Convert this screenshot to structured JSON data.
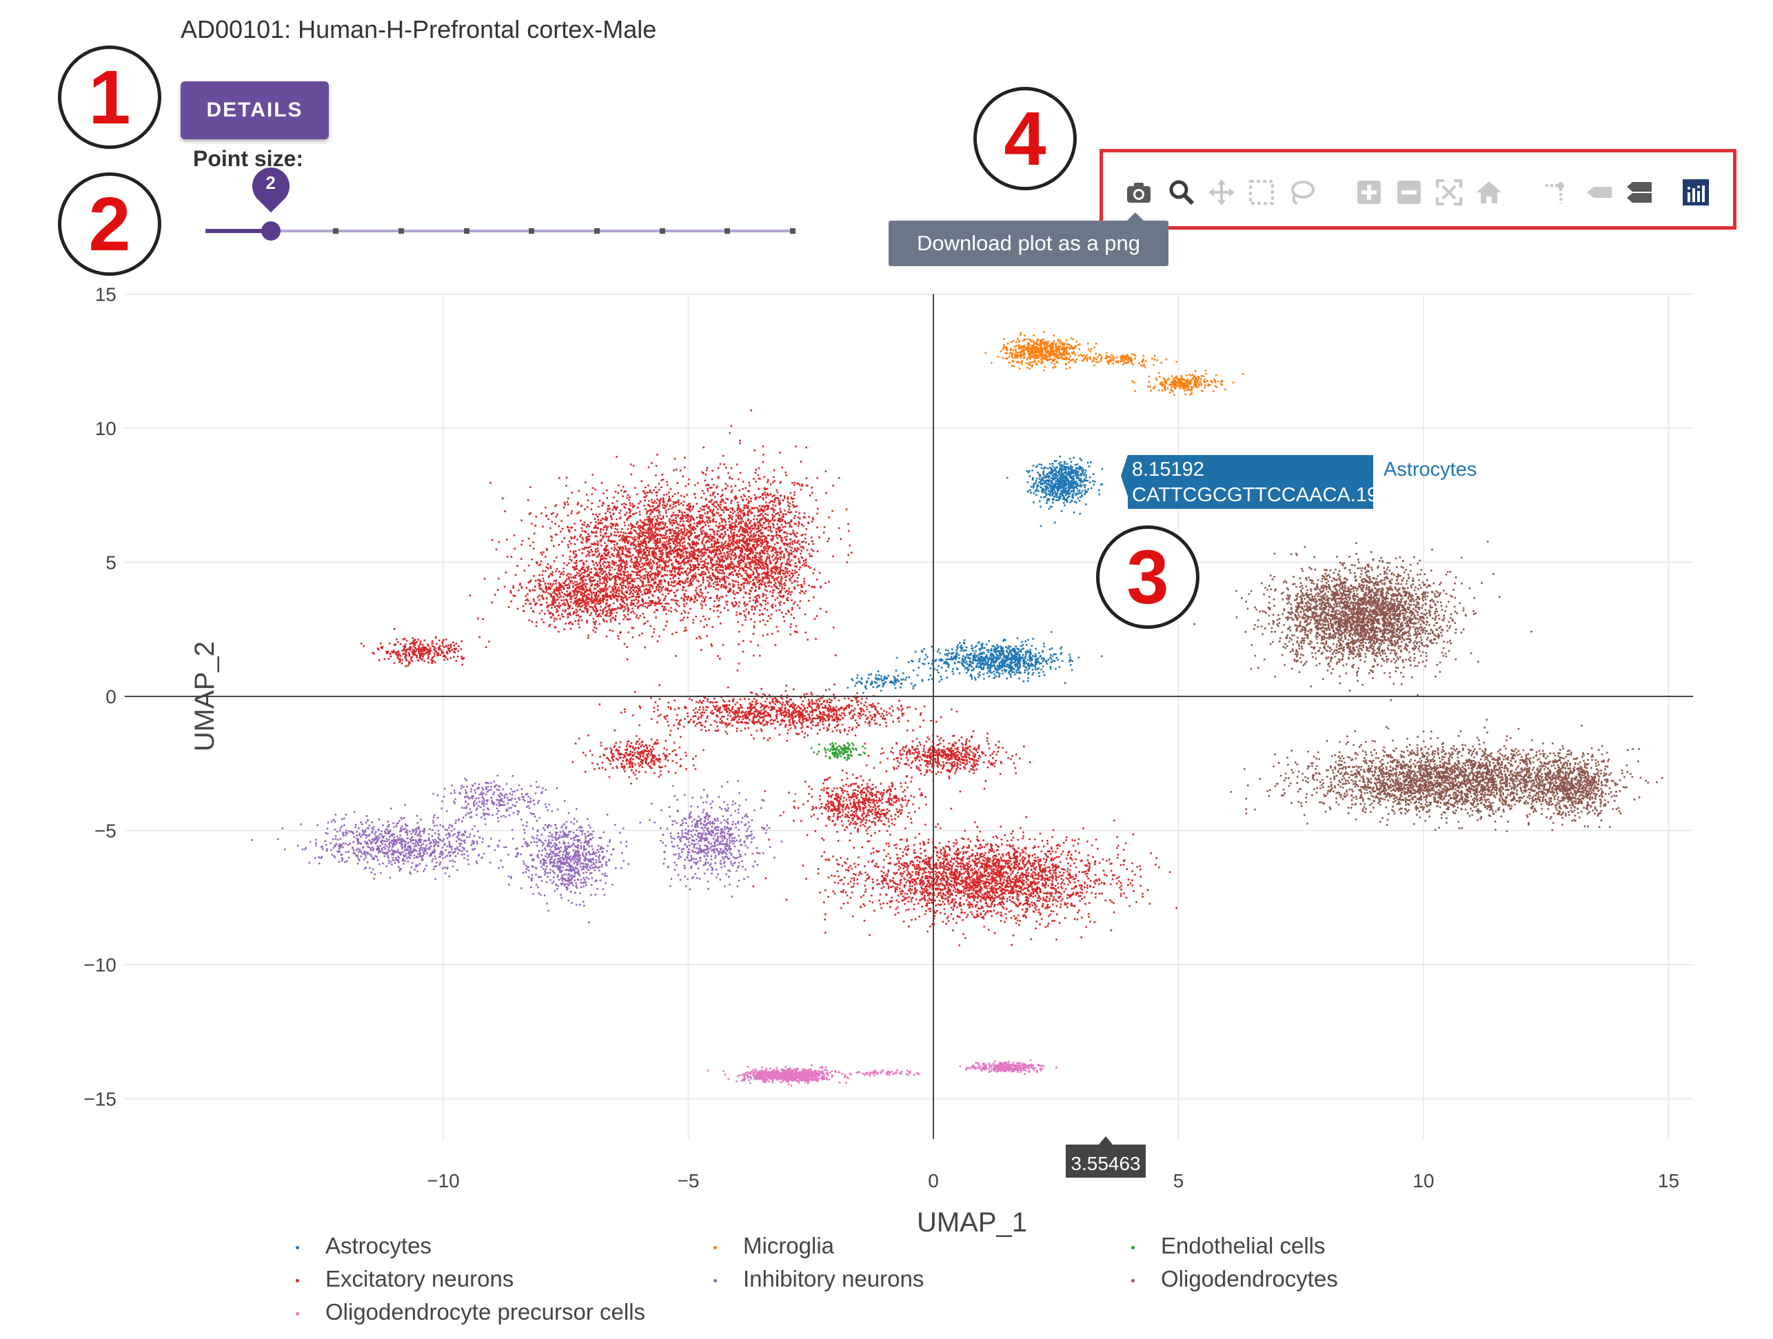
{
  "header": {
    "title": "AD00101: Human-H-Prefrontal cortex-Male",
    "details_label": "DETAILS"
  },
  "point_size": {
    "label": "Point size:",
    "value": "2",
    "min": 1,
    "max": 10,
    "level": 2
  },
  "callouts": [
    "1",
    "2",
    "3",
    "4"
  ],
  "modebar": {
    "tooltip": "Download plot as a png",
    "buttons": [
      "camera-icon",
      "zoom-icon",
      "pan-icon",
      "box-select-icon",
      "lasso-select-icon",
      "zoom-in-icon",
      "zoom-out-icon",
      "autoscale-icon",
      "reset-axes-icon",
      "spike-lines-icon",
      "hover-closest-icon",
      "hover-compare-icon",
      "plotly-logo-icon"
    ]
  },
  "hover": {
    "y_value": "8.15192",
    "cell_id": "CATTCGCGTTCCAACA.19",
    "cluster": "Astrocytes",
    "x_value": "3.55463"
  },
  "chart_data": {
    "type": "scatter",
    "xlabel": "UMAP_1",
    "ylabel": "UMAP_2",
    "xlim": [
      -16.5,
      15.5
    ],
    "ylim": [
      -16.5,
      15
    ],
    "x_ticks": [
      -10,
      -5,
      0,
      5,
      10,
      15
    ],
    "y_ticks": [
      -15,
      -10,
      -5,
      0,
      5,
      10,
      15
    ],
    "x_tick_labels": [
      "−10",
      "−5",
      "0",
      "5",
      "10",
      "15"
    ],
    "y_tick_labels": [
      "−15",
      "−10",
      "−5",
      "0",
      "5",
      "10",
      "15"
    ],
    "grid": true,
    "legend_position": "bottom",
    "series": [
      {
        "name": "Astrocytes",
        "color": "#1f77b4",
        "clusters": [
          {
            "cx": 2.6,
            "cy": 8.0,
            "sx": 0.5,
            "sy": 0.7,
            "n": 700
          },
          {
            "cx": 1.3,
            "cy": 1.4,
            "sx": 1.2,
            "sy": 0.55,
            "n": 800
          },
          {
            "cx": -1.0,
            "cy": 0.6,
            "sx": 0.7,
            "sy": 0.3,
            "n": 100
          }
        ]
      },
      {
        "name": "Microglia",
        "color": "#ff7f0e",
        "clusters": [
          {
            "cx": 2.2,
            "cy": 12.9,
            "sx": 0.7,
            "sy": 0.45,
            "n": 550
          },
          {
            "cx": 3.8,
            "cy": 12.6,
            "sx": 0.8,
            "sy": 0.2,
            "n": 120
          },
          {
            "cx": 5.1,
            "cy": 11.7,
            "sx": 0.6,
            "sy": 0.3,
            "n": 250
          }
        ]
      },
      {
        "name": "Endothelial cells",
        "color": "#2ca02c",
        "clusters": [
          {
            "cx": -1.9,
            "cy": -2.0,
            "sx": 0.4,
            "sy": 0.25,
            "n": 120
          }
        ]
      },
      {
        "name": "Excitatory neurons",
        "color": "#d62728",
        "clusters": [
          {
            "cx": -5.5,
            "cy": 5.5,
            "sx": 2.0,
            "sy": 2.1,
            "n": 3000
          },
          {
            "cx": -3.5,
            "cy": 5.5,
            "sx": 1.0,
            "sy": 2.5,
            "n": 1400
          },
          {
            "cx": -7.0,
            "cy": 3.8,
            "sx": 1.3,
            "sy": 1.0,
            "n": 900
          },
          {
            "cx": -10.5,
            "cy": 1.7,
            "sx": 0.8,
            "sy": 0.4,
            "n": 300
          },
          {
            "cx": -3.0,
            "cy": -0.6,
            "sx": 2.2,
            "sy": 0.6,
            "n": 1000
          },
          {
            "cx": -6.0,
            "cy": -2.2,
            "sx": 0.8,
            "sy": 0.6,
            "n": 300
          },
          {
            "cx": 0.3,
            "cy": -2.2,
            "sx": 1.0,
            "sy": 0.6,
            "n": 500
          },
          {
            "cx": 1.0,
            "cy": -6.8,
            "sx": 2.3,
            "sy": 1.3,
            "n": 2600
          },
          {
            "cx": -1.5,
            "cy": -4.0,
            "sx": 1.0,
            "sy": 0.9,
            "n": 600
          }
        ]
      },
      {
        "name": "Inhibitory neurons",
        "color": "#9467bd",
        "clusters": [
          {
            "cx": -10.8,
            "cy": -5.5,
            "sx": 1.6,
            "sy": 0.8,
            "n": 800
          },
          {
            "cx": -7.5,
            "cy": -6.0,
            "sx": 0.8,
            "sy": 1.2,
            "n": 700
          },
          {
            "cx": -9.0,
            "cy": -3.8,
            "sx": 1.0,
            "sy": 0.7,
            "n": 250
          },
          {
            "cx": -4.5,
            "cy": -5.3,
            "sx": 0.9,
            "sy": 1.3,
            "n": 600
          }
        ]
      },
      {
        "name": "Oligodendrocytes",
        "color": "#8c564b",
        "clusters": [
          {
            "cx": 8.7,
            "cy": 3.0,
            "sx": 1.5,
            "sy": 1.6,
            "n": 3000
          },
          {
            "cx": 10.5,
            "cy": -3.1,
            "sx": 2.5,
            "sy": 1.1,
            "n": 2800
          },
          {
            "cx": 13.0,
            "cy": -3.3,
            "sx": 0.8,
            "sy": 1.0,
            "n": 700
          }
        ]
      },
      {
        "name": "Oligodendrocyte precursor cells",
        "color": "#e377c2",
        "clusters": [
          {
            "cx": -3.0,
            "cy": -14.1,
            "sx": 0.8,
            "sy": 0.2,
            "n": 900
          },
          {
            "cx": 1.5,
            "cy": -13.8,
            "sx": 0.6,
            "sy": 0.15,
            "n": 300
          },
          {
            "cx": -1.0,
            "cy": -14.0,
            "sx": 0.7,
            "sy": 0.1,
            "n": 60
          }
        ]
      }
    ]
  }
}
